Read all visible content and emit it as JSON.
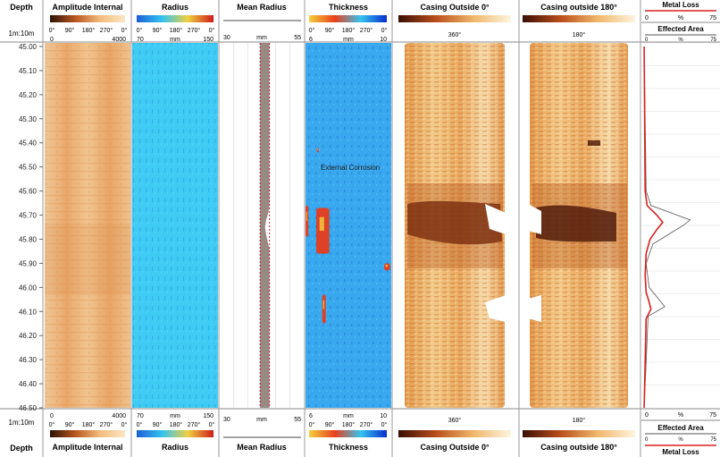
{
  "header": {
    "depth_title": "Depth",
    "scale": "1m:10m",
    "tracks": [
      {
        "title": "Amplitude Internal",
        "angles": [
          "0°",
          "90°",
          "180°",
          "270°",
          "0°"
        ],
        "min": "0",
        "max": "4000",
        "unit": ""
      },
      {
        "title": "Radius",
        "angles": [
          "0°",
          "90°",
          "180°",
          "270°",
          "0°"
        ],
        "min": "70",
        "max": "150",
        "unit": "mm"
      },
      {
        "title": "Mean Radius",
        "min": "30",
        "max": "55",
        "unit": "mm"
      },
      {
        "title": "Thickness",
        "angles": [
          "0°",
          "90°",
          "180°",
          "270°",
          "0°"
        ],
        "min": "6",
        "max": "10",
        "unit": "mm"
      },
      {
        "title": "Casing Outside 0°",
        "orientation": "360°"
      },
      {
        "title": "Casing outside 180°",
        "orientation": "180°"
      }
    ],
    "metal_loss": {
      "title": "Metal Loss",
      "min": "0",
      "unit": "%",
      "max": "75"
    },
    "effected_area": {
      "title": "Effected Area",
      "min": "0",
      "unit": "%",
      "max": "75"
    }
  },
  "footer": {
    "depth_title": "Depth",
    "scale": "1m:10m",
    "tracks": [
      {
        "title": "Amplitude Internal",
        "angles": [
          "0°",
          "90°",
          "180°",
          "270°",
          "0°"
        ],
        "min": "0",
        "max": "4000",
        "unit": ""
      },
      {
        "title": "Radius",
        "angles": [
          "0°",
          "90°",
          "180°",
          "270°",
          "0°"
        ],
        "min": "70",
        "max": "150",
        "unit": "mm"
      },
      {
        "title": "Mean Radius",
        "min": "30",
        "max": "55",
        "unit": "mm"
      },
      {
        "title": "Thickness",
        "angles": [
          "0°",
          "90°",
          "180°",
          "270°",
          "0°"
        ],
        "min": "6",
        "max": "10",
        "unit": "mm"
      },
      {
        "title": "Casing Outside 0°",
        "orientation": "360°"
      },
      {
        "title": "Casing outside 180°",
        "orientation": "180°"
      }
    ],
    "metal_loss": {
      "title": "Metal Loss",
      "min": "0",
      "unit": "%",
      "max": "75"
    },
    "effected_area": {
      "title": "Effected Area",
      "min": "0",
      "unit": "%",
      "max": "75"
    }
  },
  "annotation": "External Corrosion",
  "colors": {
    "amplitude": [
      "#2a1208",
      "#b8561e",
      "#f3bd7d",
      "#fbe6c2"
    ],
    "radius": [
      "#1c5fd6",
      "#33c4f0",
      "#f0d040",
      "#d01a1a"
    ],
    "thickness": [
      "#f4cf3c",
      "#e8401c",
      "#33c4f0",
      "#0a2dcf"
    ],
    "casing": [
      "#3a0f06",
      "#b94e1b",
      "#f0b76a",
      "#fdf4de"
    ],
    "metal_loss": "#d92020",
    "effected_area": "#555555",
    "mean_radius_fill": "#978984",
    "mean_radius_limit": "#cc1f1f"
  },
  "chart_data": {
    "type": "line",
    "depth_unit": "m",
    "depth_range": [
      45.0,
      46.5
    ],
    "depth_ticks": [
      "45.00",
      "45.10",
      "45.20",
      "45.30",
      "45.40",
      "45.50",
      "45.60",
      "45.70",
      "45.80",
      "45.90",
      "46.00",
      "46.10",
      "46.20",
      "46.30",
      "46.40",
      "46.50"
    ],
    "series": [
      {
        "name": "Metal Loss",
        "xlim": [
          0,
          75
        ],
        "depth": [
          45.0,
          45.6,
          45.66,
          45.7,
          45.73,
          45.76,
          45.8,
          45.86,
          45.95,
          46.02,
          46.06,
          46.09,
          46.13,
          46.5
        ],
        "values": [
          1,
          2,
          4,
          14,
          20,
          14,
          7,
          3,
          2,
          3,
          6,
          8,
          3,
          1
        ]
      },
      {
        "name": "Effected Area",
        "xlim": [
          0,
          75
        ],
        "depth": [
          45.0,
          45.6,
          45.66,
          45.69,
          45.72,
          45.74,
          45.77,
          45.82,
          45.9,
          46.0,
          46.05,
          46.08,
          46.12,
          46.5
        ],
        "values": [
          1,
          3,
          8,
          28,
          48,
          42,
          30,
          10,
          3,
          6,
          16,
          22,
          5,
          1
        ]
      }
    ],
    "mean_radius_profile": {
      "xlim": [
        30,
        55
      ],
      "baseline": 44.8,
      "depth": [
        45.0,
        45.66,
        45.69,
        45.72,
        45.75,
        45.78,
        45.81,
        45.84,
        46.5
      ],
      "values": [
        44.8,
        44.8,
        45.4,
        46.6,
        47.2,
        46.6,
        45.8,
        44.8,
        44.8
      ]
    },
    "thickness_anomalies_m": [
      {
        "depth": [
          45.66,
          45.79
        ],
        "angle_deg": [
          0,
          12
        ]
      },
      {
        "depth": [
          45.67,
          45.86
        ],
        "angle_deg": [
          45,
          100
        ]
      },
      {
        "depth": [
          45.9,
          45.93
        ],
        "angle_deg": [
          330,
          355
        ]
      },
      {
        "depth": [
          46.03,
          46.15
        ],
        "angle_deg": [
          70,
          85
        ]
      },
      {
        "depth": [
          45.42,
          45.44
        ],
        "angle_deg": [
          48,
          52
        ]
      }
    ]
  }
}
